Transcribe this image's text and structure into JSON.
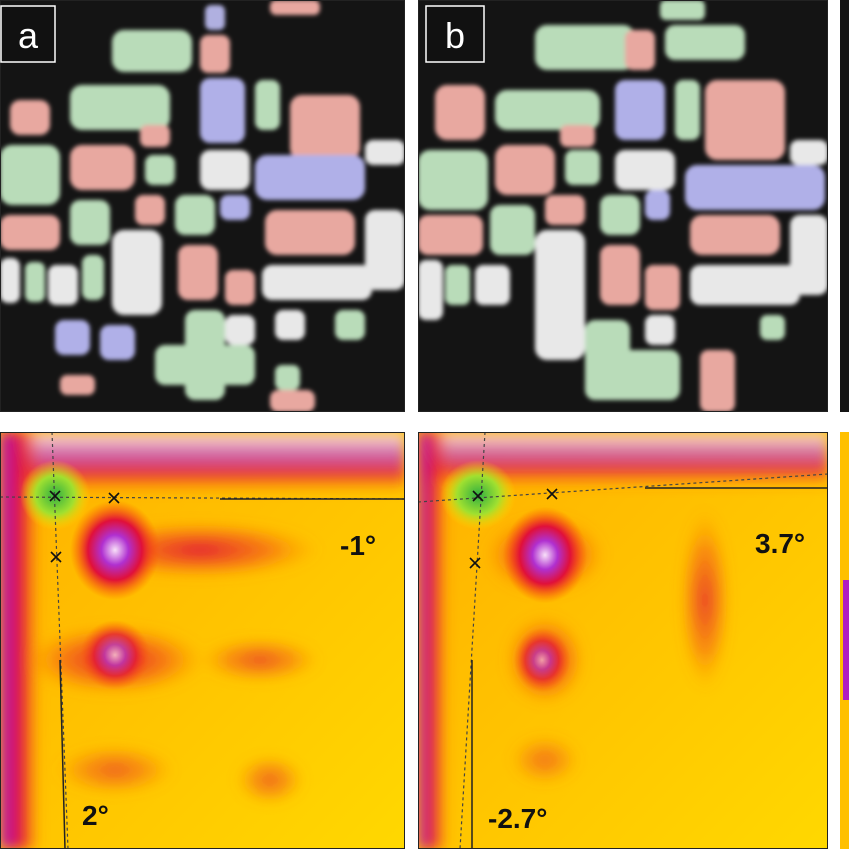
{
  "panels": [
    {
      "label": "a",
      "angles": [
        "-1°",
        "2°"
      ]
    },
    {
      "label": "b",
      "angles": [
        "3.7°",
        "-2.7°"
      ]
    }
  ]
}
